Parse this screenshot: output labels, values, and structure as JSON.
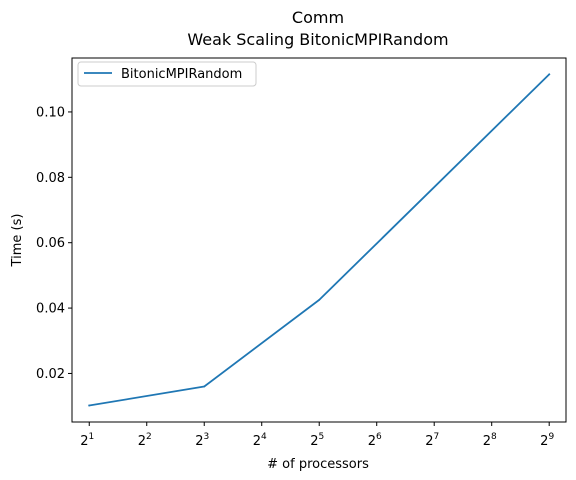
{
  "chart_data": {
    "type": "line",
    "title": "Comm",
    "subtitle": "Weak Scaling BitonicMPIRandom",
    "xlabel": "# of processors",
    "ylabel": "Time (s)",
    "x_scale": "log2",
    "x_ticks": [
      {
        "base": "2",
        "exp": "1",
        "value": 2
      },
      {
        "base": "2",
        "exp": "2",
        "value": 4
      },
      {
        "base": "2",
        "exp": "3",
        "value": 8
      },
      {
        "base": "2",
        "exp": "4",
        "value": 16
      },
      {
        "base": "2",
        "exp": "5",
        "value": 32
      },
      {
        "base": "2",
        "exp": "6",
        "value": 64
      },
      {
        "base": "2",
        "exp": "7",
        "value": 128
      },
      {
        "base": "2",
        "exp": "8",
        "value": 256
      },
      {
        "base": "2",
        "exp": "9",
        "value": 512
      }
    ],
    "y_ticks": [
      {
        "label": "0.02",
        "value": 0.02
      },
      {
        "label": "0.04",
        "value": 0.04
      },
      {
        "label": "0.06",
        "value": 0.06
      },
      {
        "label": "0.08",
        "value": 0.08
      },
      {
        "label": "0.10",
        "value": 0.1
      }
    ],
    "xlim": [
      1.6245,
      627.0
    ],
    "ylim": [
      0.00515,
      0.1165
    ],
    "grid": false,
    "legend_position": "top-left",
    "series": [
      {
        "name": "BitonicMPIRandom",
        "color": "#1f77b4",
        "x": [
          2,
          8,
          32,
          512
        ],
        "y": [
          0.0102,
          0.016,
          0.0425,
          0.1115
        ]
      }
    ]
  }
}
